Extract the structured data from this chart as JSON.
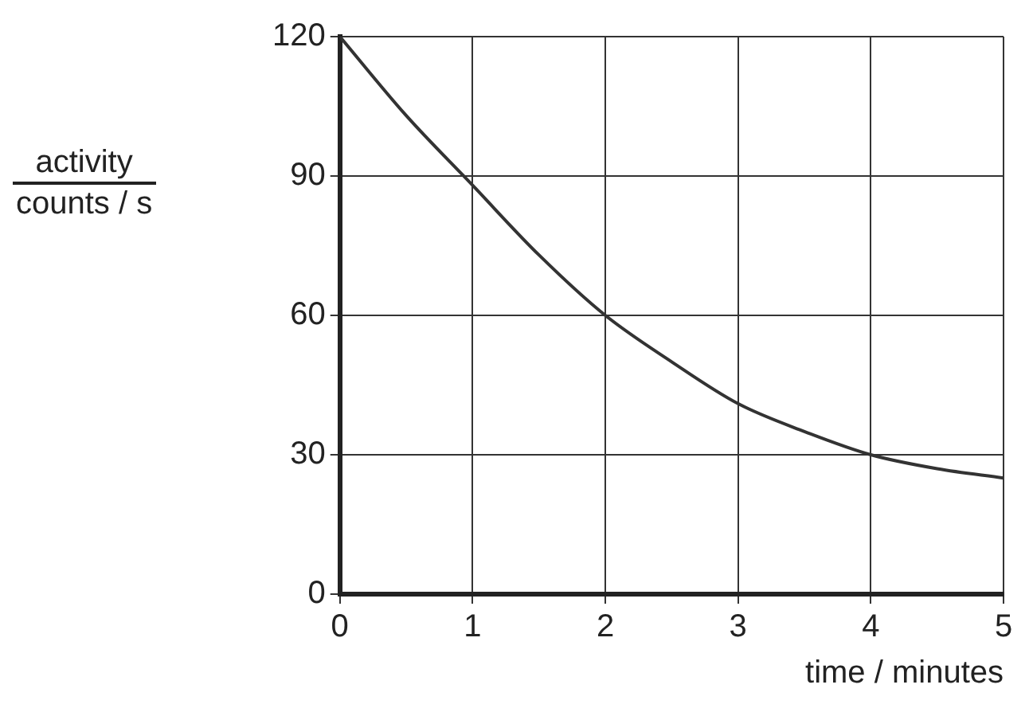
{
  "chart_data": {
    "type": "line",
    "xlabel": "time / minutes",
    "ylabel": "activity\ncounts / s",
    "x": [
      0,
      0.5,
      1,
      1.5,
      2,
      2.5,
      3,
      3.5,
      4,
      4.5,
      5
    ],
    "series": [
      {
        "color": "#333333",
        "values": [
          120,
          103,
          88,
          73,
          60,
          50,
          41,
          35,
          30,
          27,
          25
        ]
      }
    ],
    "xlim": [
      0,
      5
    ],
    "xticks": [
      0,
      1,
      2,
      3,
      4,
      5
    ],
    "ylim": [
      0,
      120
    ],
    "yticks": [
      0,
      30,
      60,
      90,
      120
    ],
    "grid": true,
    "marker": "none",
    "line_style": "solid"
  }
}
